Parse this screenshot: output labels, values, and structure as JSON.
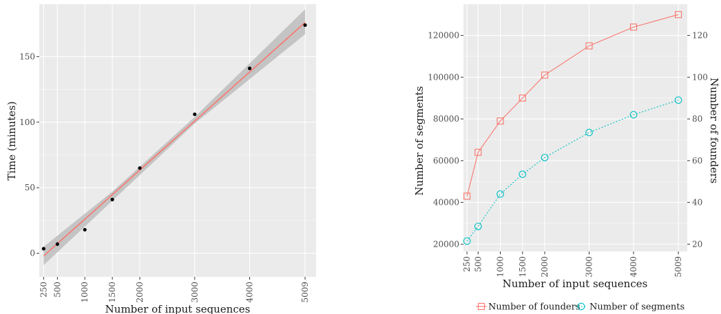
{
  "chart_data": [
    {
      "type": "scatter",
      "xlabel": "Number of input sequences",
      "ylabel": "Time (minutes)",
      "x_ticks": [
        250,
        500,
        1000,
        1500,
        2000,
        3000,
        4000,
        5009
      ],
      "y_ticks": [
        0,
        50,
        100,
        150
      ],
      "xlim": [
        170,
        5209
      ],
      "ylim": [
        -18,
        190
      ],
      "points": [
        {
          "x": 250,
          "y": 3.5
        },
        {
          "x": 500,
          "y": 7
        },
        {
          "x": 1000,
          "y": 18
        },
        {
          "x": 1500,
          "y": 41
        },
        {
          "x": 2000,
          "y": 65
        },
        {
          "x": 3000,
          "y": 106
        },
        {
          "x": 4000,
          "y": 141
        },
        {
          "x": 5009,
          "y": 174
        }
      ],
      "fit_line": {
        "x": [
          250,
          5009
        ],
        "y": [
          -2,
          176
        ]
      },
      "confidence_band": {
        "x": [
          250,
          1500,
          3000,
          5009
        ],
        "upper": [
          5,
          47,
          104,
          186
        ],
        "lower": [
          -9,
          40,
          99,
          167
        ]
      },
      "colors": {
        "points": "#000000",
        "fit": "#f8766d",
        "band": "#bdbdbd",
        "panel": "#ebebeb"
      },
      "grid": true
    },
    {
      "type": "line",
      "xlabel": "Number of input sequences",
      "ylabel": "Number of segments",
      "y2label": "Number of founders",
      "categories": [
        "250",
        "500",
        "1000",
        "1500",
        "2000",
        "3000",
        "4000",
        "5009"
      ],
      "x": [
        250,
        500,
        1000,
        1500,
        2000,
        3000,
        4000,
        5009
      ],
      "y_ticks": [
        20000,
        40000,
        60000,
        80000,
        100000,
        120000
      ],
      "y2_ticks": [
        20,
        40,
        60,
        80,
        100,
        120
      ],
      "ylim": [
        16500,
        135000
      ],
      "y2lim": [
        16.5,
        135
      ],
      "series": [
        {
          "name": "Number of founders",
          "axis": "right",
          "color": "#f8766d",
          "marker": "square",
          "linestyle": "solid",
          "values": [
            43,
            64,
            79,
            90,
            101,
            115,
            124,
            130
          ]
        },
        {
          "name": "Number of segments",
          "axis": "left",
          "color": "#00bfc4",
          "marker": "circle",
          "linestyle": "dotted",
          "values": [
            21500,
            28500,
            44000,
            53500,
            61500,
            73500,
            82000,
            89000
          ]
        }
      ],
      "legend_position": "bottom",
      "grid": true
    }
  ]
}
